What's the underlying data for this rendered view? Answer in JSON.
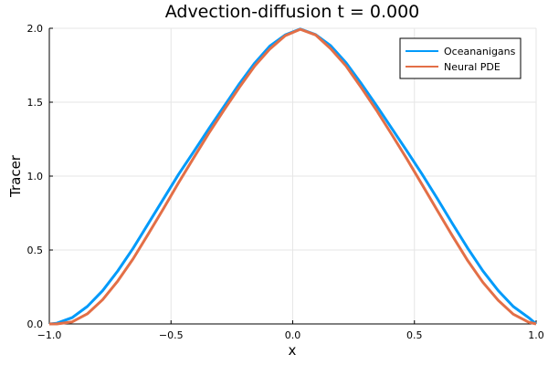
{
  "chart_data": {
    "type": "line",
    "title": "Advection-diffusion t = 0.000",
    "xlabel": "x",
    "ylabel": "Tracer",
    "xlim": [
      -1.0,
      1.0
    ],
    "ylim": [
      0.0,
      2.0
    ],
    "grid": true,
    "legend_position": "top-right",
    "x_ticks": [
      -1.0,
      -0.5,
      0.0,
      0.5,
      1.0
    ],
    "x_tick_labels": [
      "−1.0",
      "−0.5",
      "0.0",
      "0.5",
      "1.0"
    ],
    "y_ticks": [
      0.0,
      0.5,
      1.0,
      1.5,
      2.0
    ],
    "y_tick_labels": [
      "0.0",
      "0.5",
      "1.0",
      "1.5",
      "2.0"
    ],
    "series": [
      {
        "name": "Oceananigans",
        "color": "#009AFA",
        "x": [
          -0.969,
          -0.906,
          -0.844,
          -0.781,
          -0.719,
          -0.656,
          -0.594,
          -0.531,
          -0.469,
          -0.406,
          -0.344,
          -0.281,
          -0.219,
          -0.156,
          -0.094,
          -0.031,
          0.031,
          0.094,
          0.156,
          0.219,
          0.281,
          0.344,
          0.406,
          0.469,
          0.531,
          0.594,
          0.656,
          0.719,
          0.781,
          0.844,
          0.906,
          0.969
        ],
        "values": [
          0.005,
          0.043,
          0.118,
          0.225,
          0.358,
          0.511,
          0.677,
          0.846,
          1.012,
          1.167,
          1.322,
          1.475,
          1.625,
          1.765,
          1.88,
          1.955,
          1.995,
          1.957,
          1.882,
          1.767,
          1.627,
          1.478,
          1.325,
          1.17,
          1.014,
          0.848,
          0.679,
          0.512,
          0.359,
          0.226,
          0.118,
          0.043
        ]
      },
      {
        "name": "Neural PDE",
        "color": "#E36F47",
        "x": [
          -0.969,
          -0.906,
          -0.844,
          -0.781,
          -0.719,
          -0.656,
          -0.594,
          -0.531,
          -0.469,
          -0.406,
          -0.344,
          -0.281,
          -0.219,
          -0.156,
          -0.094,
          -0.031,
          0.031,
          0.094,
          0.156,
          0.219,
          0.281,
          0.344,
          0.406,
          0.469,
          0.531,
          0.594,
          0.656,
          0.719,
          0.781,
          0.844,
          0.906,
          0.969
        ],
        "values": [
          0.0,
          0.014,
          0.068,
          0.164,
          0.29,
          0.44,
          0.607,
          0.78,
          0.955,
          1.126,
          1.292,
          1.45,
          1.601,
          1.745,
          1.86,
          1.95,
          1.993,
          1.955,
          1.862,
          1.745,
          1.6,
          1.446,
          1.284,
          1.116,
          0.944,
          0.768,
          0.596,
          0.428,
          0.282,
          0.16,
          0.066,
          0.012
        ]
      }
    ]
  }
}
